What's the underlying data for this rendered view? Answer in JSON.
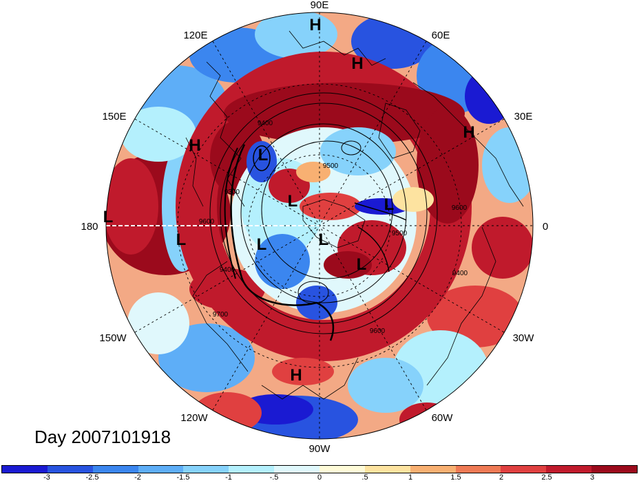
{
  "title": "Day 2007101918",
  "longitude_labels": [
    "90E",
    "60E",
    "30E",
    "0",
    "30W",
    "60W",
    "90W",
    "120W",
    "150W",
    "180",
    "150E",
    "120E"
  ],
  "pressure_centers": [
    {
      "type": "H"
    },
    {
      "type": "H"
    },
    {
      "type": "H"
    },
    {
      "type": "H"
    },
    {
      "type": "H"
    },
    {
      "type": "L"
    },
    {
      "type": "L"
    },
    {
      "type": "L"
    },
    {
      "type": "L"
    },
    {
      "type": "L"
    },
    {
      "type": "L"
    },
    {
      "type": "L"
    },
    {
      "type": "L"
    }
  ],
  "contour_labels": [
    "9400",
    "9500",
    "9600",
    "9600",
    "9500",
    "9400",
    "9600",
    "9700",
    "9300",
    "9400"
  ],
  "colorbar": {
    "colors": [
      "#1a1ad2",
      "#2853e0",
      "#3b86ef",
      "#5eaef7",
      "#86d2fb",
      "#b4f0fd",
      "#e0f8fc",
      "#fffbd8",
      "#fde3a0",
      "#f8b072",
      "#ef7a55",
      "#e04040",
      "#c01a2c",
      "#9b0a1c"
    ],
    "tick_labels": [
      "-3",
      "-2.5",
      "-2",
      "-1.5",
      "-1",
      "-.5",
      "0",
      ".5",
      "1",
      "1.5",
      "2",
      "2.5",
      "3"
    ]
  }
}
